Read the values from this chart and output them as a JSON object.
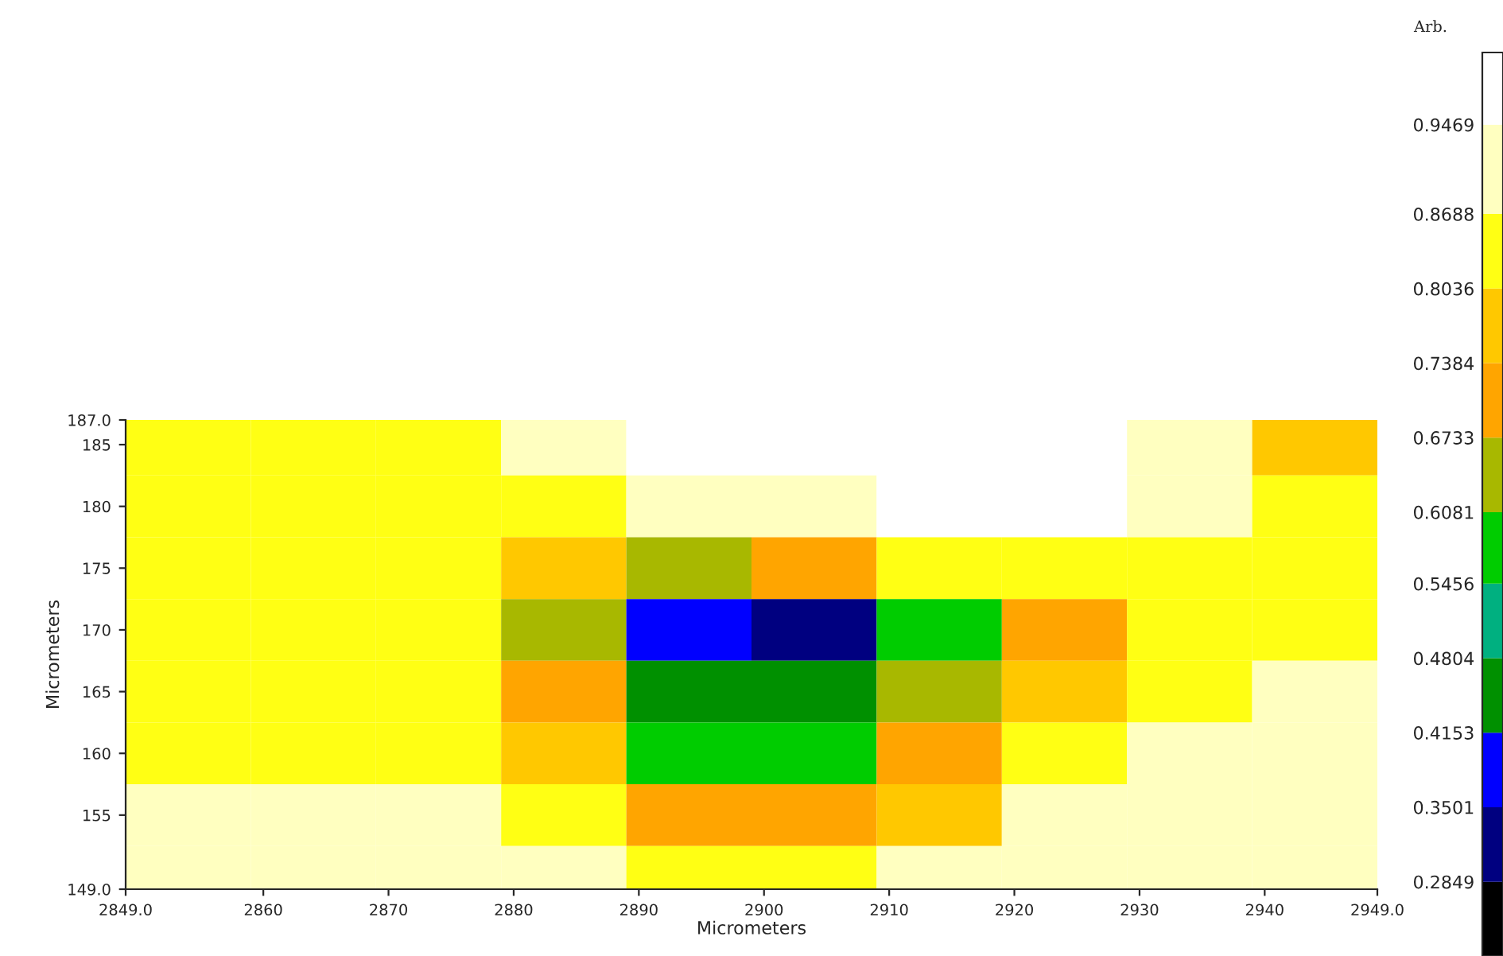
{
  "chart_data": {
    "type": "heatmap",
    "xlabel": "Micrometers",
    "ylabel": "Micrometers",
    "clabel": "Arb.",
    "x": [
      2854,
      2864,
      2874,
      2884,
      2894,
      2904,
      2914,
      2924,
      2934,
      2944
    ],
    "y": [
      185,
      180,
      175,
      170,
      165,
      160,
      155,
      150
    ],
    "cells": [
      [
        0.84,
        0.84,
        0.84,
        0.9,
        0.98,
        0.98,
        0.98,
        0.98,
        0.9,
        0.77
      ],
      [
        0.84,
        0.84,
        0.84,
        0.84,
        0.9,
        0.9,
        0.98,
        0.98,
        0.9,
        0.84
      ],
      [
        0.84,
        0.84,
        0.84,
        0.77,
        0.64,
        0.7,
        0.84,
        0.84,
        0.84,
        0.84
      ],
      [
        0.84,
        0.84,
        0.84,
        0.64,
        0.38,
        0.32,
        0.58,
        0.7,
        0.84,
        0.84
      ],
      [
        0.84,
        0.84,
        0.84,
        0.7,
        0.45,
        0.45,
        0.64,
        0.77,
        0.84,
        0.9
      ],
      [
        0.84,
        0.84,
        0.84,
        0.77,
        0.58,
        0.58,
        0.7,
        0.84,
        0.9,
        0.9
      ],
      [
        0.9,
        0.9,
        0.9,
        0.84,
        0.7,
        0.7,
        0.77,
        0.9,
        0.9,
        0.9
      ],
      [
        0.9,
        0.9,
        0.9,
        0.9,
        0.84,
        0.84,
        0.9,
        0.9,
        0.9,
        0.9
      ]
    ],
    "clim": [
      0.22,
      1.01
    ],
    "cticks": [
      0.2849,
      0.3501,
      0.4153,
      0.4804,
      0.5456,
      0.6081,
      0.6733,
      0.7384,
      0.8036,
      0.8688,
      0.9469
    ],
    "colors": [
      "#000000",
      "#000080",
      "#0000ff",
      "#009000",
      "#00b080",
      "#00cc00",
      "#a8b800",
      "#ffa500",
      "#ffc800",
      "#ffff14",
      "#ffffc0",
      "#ffffff"
    ],
    "xlim": [
      2849,
      2949
    ],
    "ylim": [
      149,
      187
    ],
    "xticks": [
      {
        "value": 2849,
        "label": "2849.0"
      },
      2860,
      2870,
      2880,
      2890,
      2900,
      2910,
      2920,
      2930,
      2940,
      {
        "value": 2949,
        "label": "2949.0"
      }
    ],
    "yticks": [
      {
        "value": 149,
        "label": "149.0"
      },
      155,
      160,
      165,
      170,
      175,
      180,
      185,
      {
        "value": 187,
        "label": "187.0"
      }
    ]
  }
}
